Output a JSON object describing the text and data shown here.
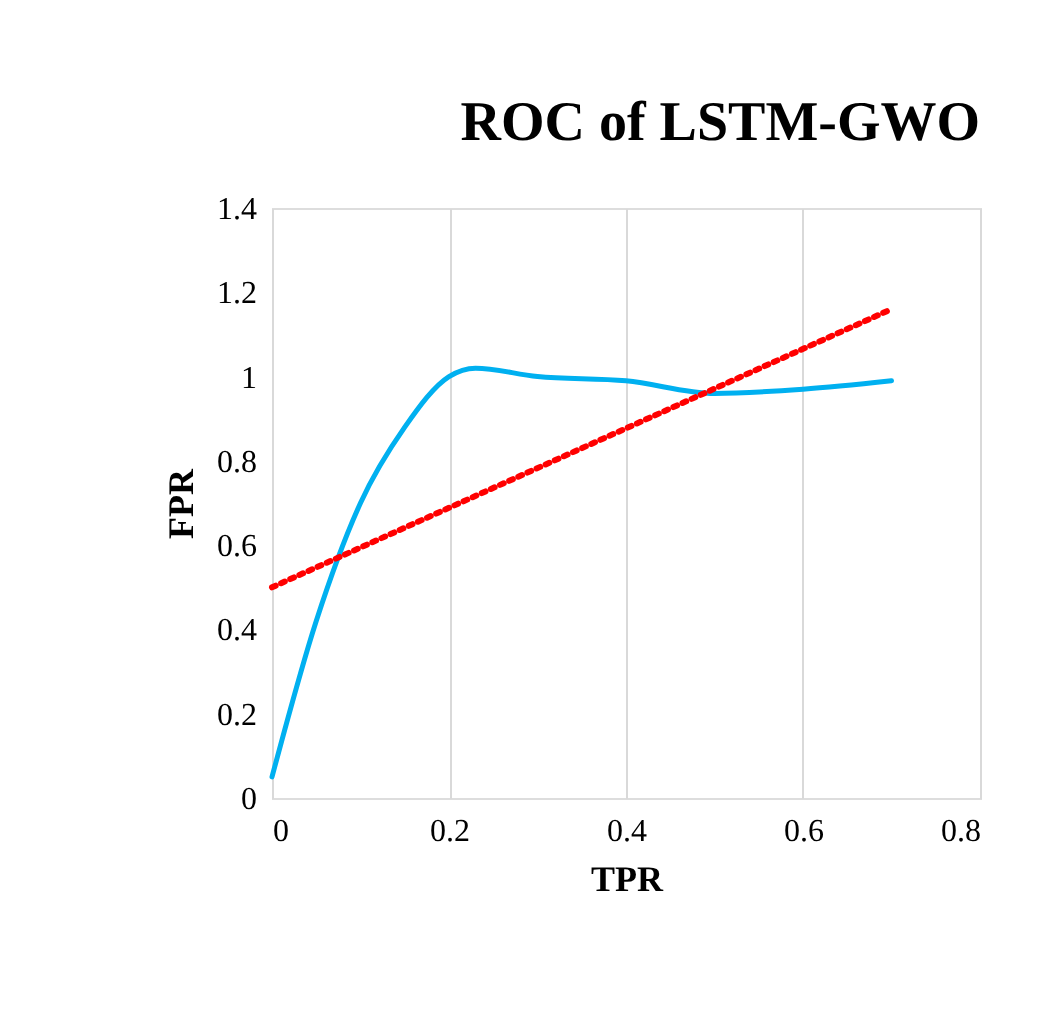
{
  "chart_data": {
    "type": "line",
    "title": "ROC of LSTM-GWO",
    "xlabel": "TPR",
    "ylabel": "FPR",
    "series": [
      {
        "color": "#00b0f0",
        "line_style": "solid",
        "x": [
          0,
          0.05,
          0.1,
          0.15,
          0.2,
          0.23,
          0.3,
          0.4,
          0.5,
          0.6,
          0.7
        ],
        "values": [
          0.05,
          0.42,
          0.7,
          0.88,
          1.0,
          1.02,
          1.0,
          0.99,
          0.96,
          0.97,
          0.99
        ]
      },
      {
        "color": "#ff0000",
        "line_style": "dotted",
        "x": [
          0,
          0.7
        ],
        "values": [
          0.5,
          1.16
        ]
      }
    ],
    "xlim": [
      0,
      0.8
    ],
    "xticks": [
      0,
      0.2,
      0.4,
      0.6,
      0.8
    ],
    "ylim": [
      0,
      1.4
    ],
    "yticks": [
      0,
      0.2,
      0.4,
      0.6,
      0.8,
      1,
      1.2,
      1.4
    ],
    "grid": "x",
    "legend": false,
    "marker": "none"
  }
}
